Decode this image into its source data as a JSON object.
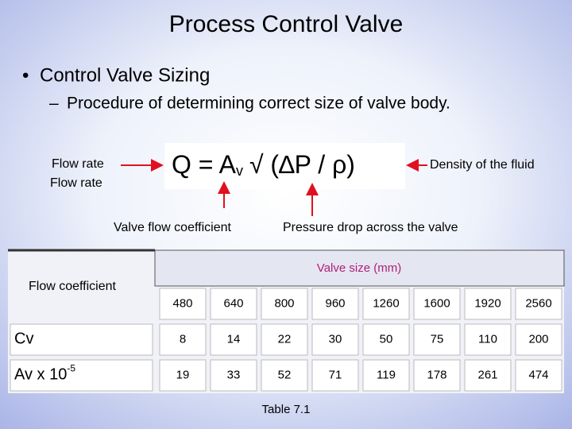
{
  "slide": {
    "title": "Process Control Valve",
    "bullet": "Control Valve Sizing",
    "sub_bullet": "Procedure of determining correct size of valve body.",
    "formula": {
      "lhs": "Q = A",
      "subscript": "v",
      "rhs": "√ (∆P / ρ)"
    },
    "labels": {
      "flow_rate_1": "Flow rate",
      "flow_rate_2": "Flow rate",
      "density": "Density of the fluid",
      "coefficient": "Valve flow coefficient",
      "pressure": "Pressure drop across the valve"
    },
    "table": {
      "corner": "Flow coefficient",
      "group_header": "Valve size (mm)",
      "sizes": [
        480,
        640,
        800,
        960,
        1260,
        1600,
        1920,
        2560
      ],
      "rows": [
        {
          "label": "Cv",
          "values": [
            8,
            14,
            22,
            30,
            50,
            75,
            110,
            200
          ]
        },
        {
          "label": "Av x 10",
          "label_sup": "-5",
          "values": [
            19,
            33,
            52,
            71,
            119,
            178,
            261,
            474
          ]
        }
      ],
      "caption": "Table 7.1"
    }
  }
}
